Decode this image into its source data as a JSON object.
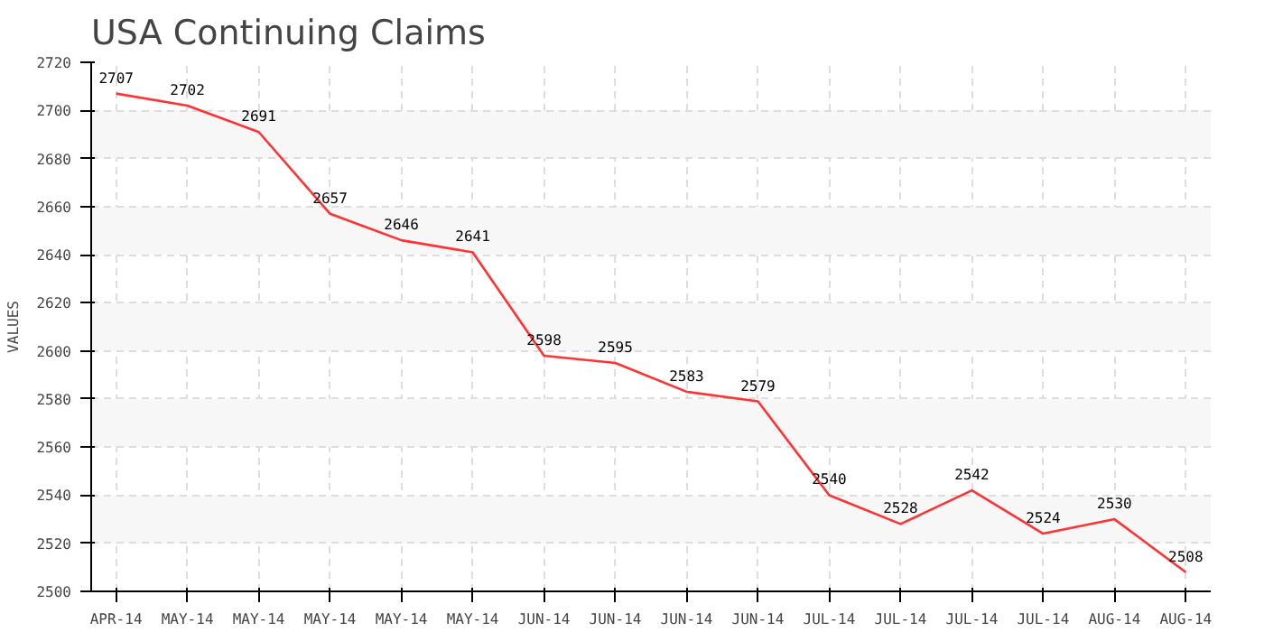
{
  "chart_data": {
    "type": "line",
    "title": "USA Continuing Claims",
    "ylabel": "VALUES",
    "categories": [
      "APR-14",
      "MAY-14",
      "MAY-14",
      "MAY-14",
      "MAY-14",
      "MAY-14",
      "JUN-14",
      "JUN-14",
      "JUN-14",
      "JUN-14",
      "JUL-14",
      "JUL-14",
      "JUL-14",
      "JUL-14",
      "AUG-14",
      "AUG-14"
    ],
    "series": [
      {
        "color": "#ff3333",
        "values": [
          2707,
          2702,
          2691,
          2657,
          2646,
          2641,
          2598,
          2595,
          2583,
          2579,
          2540,
          2528,
          2542,
          2524,
          2530,
          2508
        ]
      }
    ],
    "ylim": [
      2500,
      2720
    ],
    "yticks": [
      2500,
      2520,
      2540,
      2560,
      2580,
      2600,
      2620,
      2640,
      2660,
      2680,
      2700,
      2720
    ],
    "grid": true,
    "data_labels": true,
    "marker": "none",
    "line_style": "solid"
  }
}
